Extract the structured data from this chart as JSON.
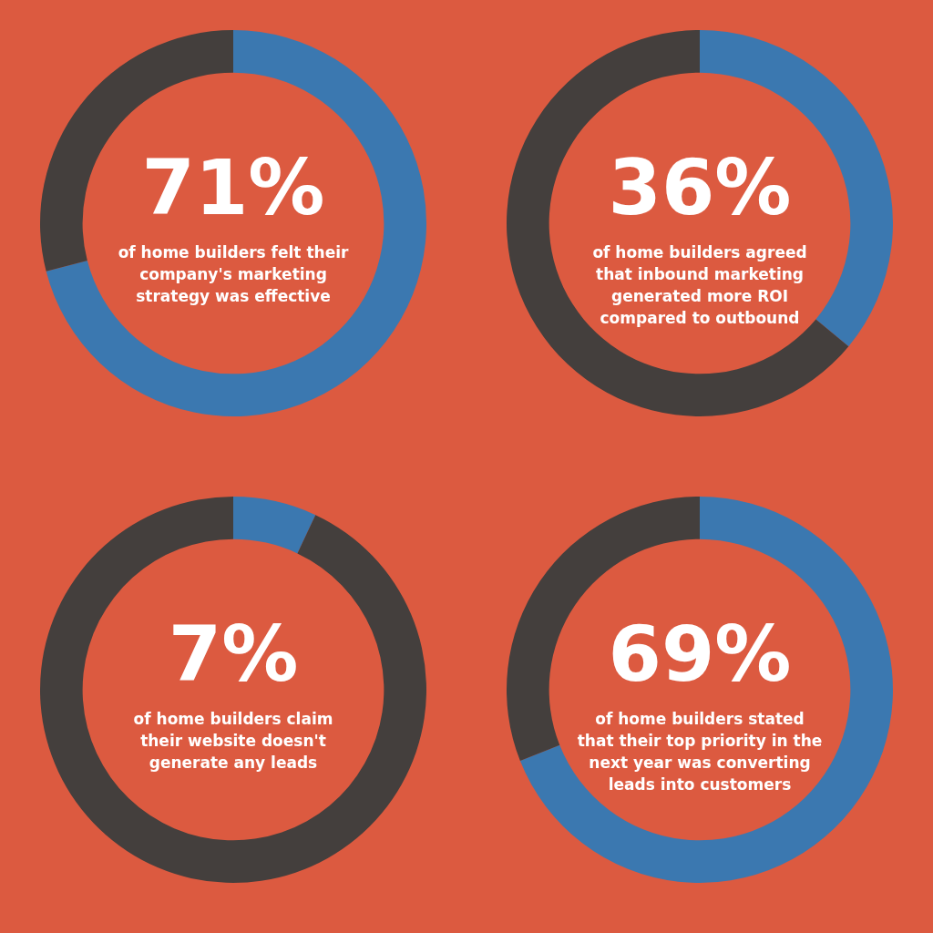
{
  "chart_data": [
    {
      "type": "donut",
      "categories": [
        null,
        null
      ],
      "values": [
        71,
        29
      ],
      "colors": [
        "#3b78b0",
        "#443f3d"
      ],
      "value_labels": [
        "71%",
        null
      ],
      "annotations": [
        "of home builders felt their company's marketing strategy was effective"
      ]
    },
    {
      "type": "donut",
      "categories": [
        null,
        null
      ],
      "values": [
        36,
        64
      ],
      "colors": [
        "#3b78b0",
        "#443f3d"
      ],
      "value_labels": [
        "36%",
        null
      ],
      "annotations": [
        "of home builders agreed that inbound marketing generated more ROI compared to outbound"
      ]
    },
    {
      "type": "donut",
      "categories": [
        null,
        null
      ],
      "values": [
        7,
        93
      ],
      "colors": [
        "#3b78b0",
        "#443f3d"
      ],
      "value_labels": [
        "7%",
        null
      ],
      "annotations": [
        "of home builders claim their website doesn't generate any leads"
      ]
    },
    {
      "type": "donut",
      "categories": [
        null,
        null
      ],
      "values": [
        69,
        31
      ],
      "colors": [
        "#3b78b0",
        "#443f3d"
      ],
      "value_labels": [
        "69%",
        null
      ],
      "annotations": [
        "of home builders stated that their top priority in the next year was converting leads into customers"
      ]
    }
  ]
}
